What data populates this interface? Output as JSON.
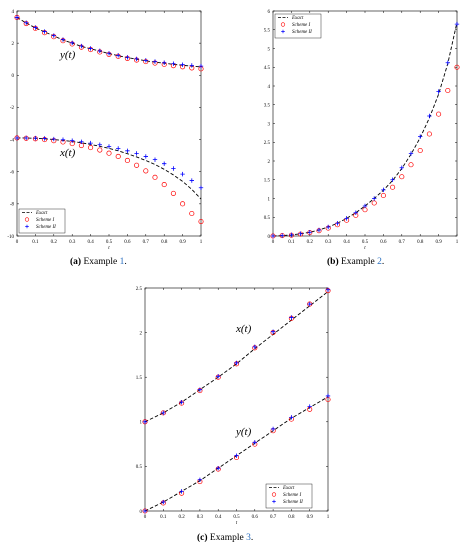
{
  "chart_data": [
    {
      "type": "line",
      "panel_id": "a",
      "caption": {
        "label": "(a)",
        "text": "Example ",
        "ref": "1",
        "end": "."
      },
      "x": [
        0,
        0.05,
        0.1,
        0.15,
        0.2,
        0.25,
        0.3,
        0.35,
        0.4,
        0.45,
        0.5,
        0.55,
        0.6,
        0.65,
        0.7,
        0.75,
        0.8,
        0.85,
        0.9,
        0.95,
        1
      ],
      "xlim": [
        0,
        1
      ],
      "ylim": [
        -10,
        4
      ],
      "xticks": [
        "0",
        "0.1",
        "0.2",
        "0.3",
        "0.4",
        "0.5",
        "0.6",
        "0.7",
        "0.8",
        "0.9",
        "1"
      ],
      "xtick_values": [
        0,
        0.1,
        0.2,
        0.3,
        0.4,
        0.5,
        0.6,
        0.7,
        0.8,
        0.9,
        1
      ],
      "yticks": [
        "-10",
        "-8",
        "-6",
        "-4",
        "-2",
        "0",
        "2",
        "4"
      ],
      "ytick_values": [
        -10,
        -8,
        -6,
        -4,
        -2,
        0,
        2,
        4
      ],
      "xlabel": "t",
      "ylabel": "",
      "grid": false,
      "legend_position": "bottom-left",
      "annotations": [
        "y(t)",
        "x(t)"
      ],
      "series": [
        {
          "name": "Exact",
          "curve": "y",
          "values": [
            3.6,
            3.25,
            2.95,
            2.7,
            2.45,
            2.2,
            2.0,
            1.8,
            1.65,
            1.5,
            1.35,
            1.22,
            1.1,
            1.0,
            0.9,
            0.82,
            0.75,
            0.68,
            0.62,
            0.57,
            0.52
          ]
        },
        {
          "name": "Scheme I",
          "curve": "y",
          "values": [
            3.6,
            3.22,
            2.92,
            2.65,
            2.4,
            2.15,
            1.95,
            1.75,
            1.6,
            1.45,
            1.3,
            1.18,
            1.05,
            0.95,
            0.85,
            0.76,
            0.68,
            0.6,
            0.53,
            0.46,
            0.4
          ]
        },
        {
          "name": "Scheme II",
          "curve": "y",
          "values": [
            3.6,
            3.27,
            2.97,
            2.72,
            2.47,
            2.22,
            2.02,
            1.82,
            1.67,
            1.52,
            1.37,
            1.24,
            1.12,
            1.02,
            0.93,
            0.85,
            0.78,
            0.72,
            0.66,
            0.61,
            0.57
          ]
        },
        {
          "name": "Exact",
          "curve": "x",
          "values": [
            -3.9,
            -3.9,
            -3.92,
            -3.95,
            -4.0,
            -4.05,
            -4.12,
            -4.2,
            -4.3,
            -4.42,
            -4.55,
            -4.7,
            -4.88,
            -5.08,
            -5.3,
            -5.55,
            -5.85,
            -6.2,
            -6.6,
            -7.1,
            -7.7
          ]
        },
        {
          "name": "Scheme I",
          "curve": "x",
          "values": [
            -3.9,
            -3.92,
            -3.95,
            -4.0,
            -4.07,
            -4.15,
            -4.25,
            -4.37,
            -4.5,
            -4.65,
            -4.85,
            -5.05,
            -5.3,
            -5.6,
            -5.95,
            -6.35,
            -6.8,
            -7.35,
            -8.0,
            -8.6,
            -9.1
          ]
        },
        {
          "name": "Scheme II",
          "curve": "x",
          "values": [
            -3.9,
            -3.9,
            -3.91,
            -3.93,
            -3.97,
            -4.01,
            -4.07,
            -4.14,
            -4.22,
            -4.32,
            -4.43,
            -4.55,
            -4.7,
            -4.86,
            -5.05,
            -5.25,
            -5.5,
            -5.8,
            -6.15,
            -6.55,
            -7.0
          ]
        }
      ]
    },
    {
      "type": "line",
      "panel_id": "b",
      "caption": {
        "label": "(b)",
        "text": "Example ",
        "ref": "2",
        "end": "."
      },
      "x": [
        0,
        0.05,
        0.1,
        0.15,
        0.2,
        0.25,
        0.3,
        0.35,
        0.4,
        0.45,
        0.5,
        0.55,
        0.6,
        0.65,
        0.7,
        0.75,
        0.8,
        0.85,
        0.9,
        0.95,
        1
      ],
      "xlim": [
        0,
        1
      ],
      "ylim": [
        0,
        6
      ],
      "xticks": [
        "0",
        "0.1",
        "0.2",
        "0.3",
        "0.4",
        "0.5",
        "0.6",
        "0.7",
        "0.8",
        "0.9",
        "1"
      ],
      "xtick_values": [
        0,
        0.1,
        0.2,
        0.3,
        0.4,
        0.5,
        0.6,
        0.7,
        0.8,
        0.9,
        1
      ],
      "yticks": [
        "0",
        "0.5",
        "1",
        "1.5",
        "2",
        "2.5",
        "3",
        "3.5",
        "4",
        "4.5",
        "5",
        "5.5",
        "6"
      ],
      "ytick_values": [
        0,
        0.5,
        1,
        1.5,
        2,
        2.5,
        3,
        3.5,
        4,
        4.5,
        5,
        5.5,
        6
      ],
      "xlabel": "t",
      "ylabel": "",
      "grid": false,
      "legend_position": "top-left",
      "annotations": [],
      "series": [
        {
          "name": "Exact",
          "values": [
            0,
            0.01,
            0.03,
            0.06,
            0.1,
            0.16,
            0.24,
            0.34,
            0.47,
            0.62,
            0.8,
            1.0,
            1.22,
            1.48,
            1.8,
            2.18,
            2.62,
            3.15,
            3.78,
            4.6,
            5.7
          ]
        },
        {
          "name": "Scheme I",
          "values": [
            0,
            0.01,
            0.02,
            0.05,
            0.09,
            0.14,
            0.21,
            0.3,
            0.42,
            0.55,
            0.7,
            0.88,
            1.08,
            1.3,
            1.58,
            1.9,
            2.28,
            2.72,
            3.25,
            3.88,
            4.5
          ]
        },
        {
          "name": "Scheme II",
          "values": [
            0,
            0.01,
            0.03,
            0.06,
            0.1,
            0.16,
            0.24,
            0.34,
            0.47,
            0.62,
            0.8,
            1.0,
            1.23,
            1.5,
            1.82,
            2.2,
            2.65,
            3.2,
            3.85,
            4.62,
            5.65
          ]
        }
      ]
    },
    {
      "type": "line",
      "panel_id": "c",
      "caption": {
        "label": "(c)",
        "text": "Example ",
        "ref": "3",
        "end": "."
      },
      "x": [
        0,
        0.1,
        0.2,
        0.3,
        0.4,
        0.5,
        0.6,
        0.7,
        0.8,
        0.9,
        1
      ],
      "xlim": [
        0,
        1
      ],
      "ylim": [
        0,
        2.5
      ],
      "xticks": [
        "0",
        "0.1",
        "0.2",
        "0.3",
        "0.4",
        "0.5",
        "0.6",
        "0.7",
        "0.8",
        "0.9",
        "1"
      ],
      "xtick_values": [
        0,
        0.1,
        0.2,
        0.3,
        0.4,
        0.5,
        0.6,
        0.7,
        0.8,
        0.9,
        1
      ],
      "yticks": [
        "0",
        "0.5",
        "1",
        "1.5",
        "2",
        "2.5"
      ],
      "ytick_values": [
        0,
        0.5,
        1,
        1.5,
        2,
        2.5
      ],
      "xlabel": "t",
      "ylabel": "",
      "grid": false,
      "legend_position": "bottom-right",
      "annotations": [
        "x(t)",
        "y(t)"
      ],
      "series": [
        {
          "name": "Exact",
          "curve": "x",
          "values": [
            1.0,
            1.1,
            1.22,
            1.36,
            1.5,
            1.65,
            1.82,
            1.98,
            2.14,
            2.3,
            2.46
          ]
        },
        {
          "name": "Scheme I",
          "curve": "x",
          "values": [
            1.0,
            1.1,
            1.21,
            1.35,
            1.5,
            1.65,
            1.83,
            2.0,
            2.16,
            2.32,
            2.47
          ]
        },
        {
          "name": "Scheme II",
          "curve": "x",
          "values": [
            1.0,
            1.1,
            1.22,
            1.36,
            1.51,
            1.66,
            1.84,
            2.01,
            2.17,
            2.32,
            2.48
          ]
        },
        {
          "name": "Exact",
          "curve": "y",
          "values": [
            0.0,
            0.1,
            0.22,
            0.34,
            0.48,
            0.62,
            0.76,
            0.9,
            1.04,
            1.16,
            1.28
          ]
        },
        {
          "name": "Scheme I",
          "curve": "y",
          "values": [
            0.0,
            0.09,
            0.2,
            0.33,
            0.47,
            0.6,
            0.75,
            0.9,
            1.03,
            1.14,
            1.25
          ]
        },
        {
          "name": "Scheme II",
          "curve": "y",
          "values": [
            0.0,
            0.1,
            0.22,
            0.35,
            0.48,
            0.62,
            0.77,
            0.92,
            1.05,
            1.17,
            1.29
          ]
        }
      ]
    }
  ],
  "colors": {
    "exact": "#000000",
    "scheme1": "#ff0000",
    "scheme2": "#0000ff",
    "caption_ref": "#2a6fc0"
  }
}
